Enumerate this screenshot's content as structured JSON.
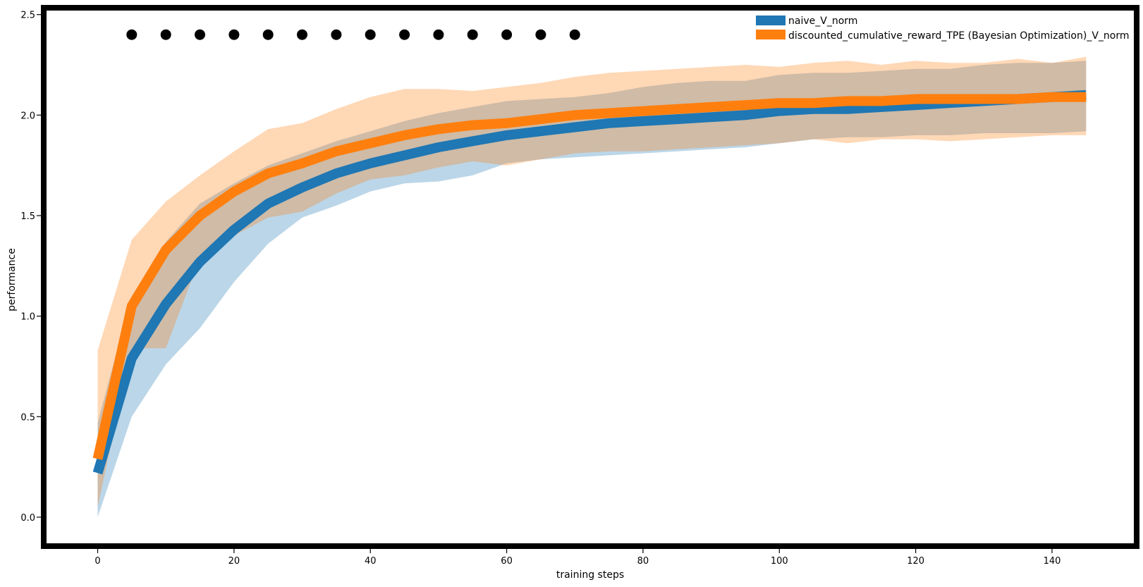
{
  "chart_data": {
    "type": "line",
    "title": "",
    "xlabel": "training steps",
    "ylabel": "performance",
    "xlim": [
      -7.5,
      152
    ],
    "ylim": [
      -0.13,
      2.52
    ],
    "xticks": [
      0,
      20,
      40,
      60,
      80,
      100,
      120,
      140
    ],
    "yticks": [
      0.0,
      0.5,
      1.0,
      1.5,
      2.0,
      2.5
    ],
    "xtick_labels": [
      "0",
      "20",
      "40",
      "60",
      "80",
      "100",
      "120",
      "140"
    ],
    "ytick_labels": [
      "0.0",
      "0.5",
      "1.0",
      "1.5",
      "2.0",
      "2.5"
    ],
    "grid": false,
    "legend_position": "top-right",
    "x": [
      0,
      5,
      10,
      15,
      20,
      25,
      30,
      35,
      40,
      45,
      50,
      55,
      60,
      65,
      70,
      75,
      80,
      85,
      90,
      95,
      100,
      105,
      110,
      115,
      120,
      125,
      130,
      135,
      140,
      145
    ],
    "series": [
      {
        "name": "naive_V_norm",
        "color": "#1f77b4",
        "band_color": "#1f77b4",
        "values": [
          0.22,
          0.79,
          1.06,
          1.27,
          1.43,
          1.56,
          1.64,
          1.71,
          1.76,
          1.8,
          1.84,
          1.87,
          1.9,
          1.92,
          1.94,
          1.96,
          1.97,
          1.98,
          1.99,
          2.0,
          2.02,
          2.03,
          2.03,
          2.04,
          2.05,
          2.06,
          2.07,
          2.08,
          2.09,
          2.1
        ],
        "lower": [
          0.0,
          0.5,
          0.76,
          0.94,
          1.17,
          1.36,
          1.49,
          1.55,
          1.62,
          1.66,
          1.67,
          1.7,
          1.76,
          1.78,
          1.79,
          1.8,
          1.81,
          1.82,
          1.83,
          1.84,
          1.86,
          1.88,
          1.89,
          1.89,
          1.9,
          1.9,
          1.91,
          1.91,
          1.91,
          1.92
        ],
        "upper": [
          0.47,
          1.1,
          1.37,
          1.56,
          1.66,
          1.75,
          1.81,
          1.87,
          1.92,
          1.97,
          2.01,
          2.04,
          2.07,
          2.08,
          2.09,
          2.11,
          2.14,
          2.16,
          2.17,
          2.17,
          2.2,
          2.21,
          2.21,
          2.22,
          2.23,
          2.23,
          2.25,
          2.26,
          2.26,
          2.27
        ]
      },
      {
        "name": "discounted_cumulative_reward_TPE (Bayesian Optimization)_V_norm",
        "color": "#ff7f0e",
        "band_color": "#ff7f0e",
        "values": [
          0.29,
          1.05,
          1.33,
          1.5,
          1.62,
          1.71,
          1.76,
          1.82,
          1.86,
          1.9,
          1.93,
          1.95,
          1.96,
          1.98,
          2.0,
          2.01,
          2.02,
          2.03,
          2.04,
          2.05,
          2.06,
          2.06,
          2.07,
          2.07,
          2.08,
          2.08,
          2.08,
          2.08,
          2.09,
          2.09
        ],
        "lower": [
          0.05,
          0.84,
          0.84,
          1.29,
          1.4,
          1.49,
          1.52,
          1.61,
          1.68,
          1.7,
          1.74,
          1.77,
          1.75,
          1.78,
          1.81,
          1.82,
          1.82,
          1.83,
          1.84,
          1.85,
          1.86,
          1.88,
          1.86,
          1.88,
          1.88,
          1.87,
          1.88,
          1.89,
          1.9,
          1.9
        ],
        "upper": [
          0.83,
          1.38,
          1.57,
          1.7,
          1.82,
          1.93,
          1.96,
          2.03,
          2.09,
          2.13,
          2.13,
          2.12,
          2.14,
          2.16,
          2.19,
          2.21,
          2.22,
          2.23,
          2.24,
          2.25,
          2.24,
          2.26,
          2.27,
          2.25,
          2.27,
          2.26,
          2.26,
          2.28,
          2.26,
          2.29
        ]
      }
    ],
    "markers": {
      "type": "scatter",
      "color": "#000000",
      "y": 2.4,
      "x": [
        5,
        10,
        15,
        20,
        25,
        30,
        35,
        40,
        45,
        50,
        55,
        60,
        65,
        70
      ]
    }
  }
}
